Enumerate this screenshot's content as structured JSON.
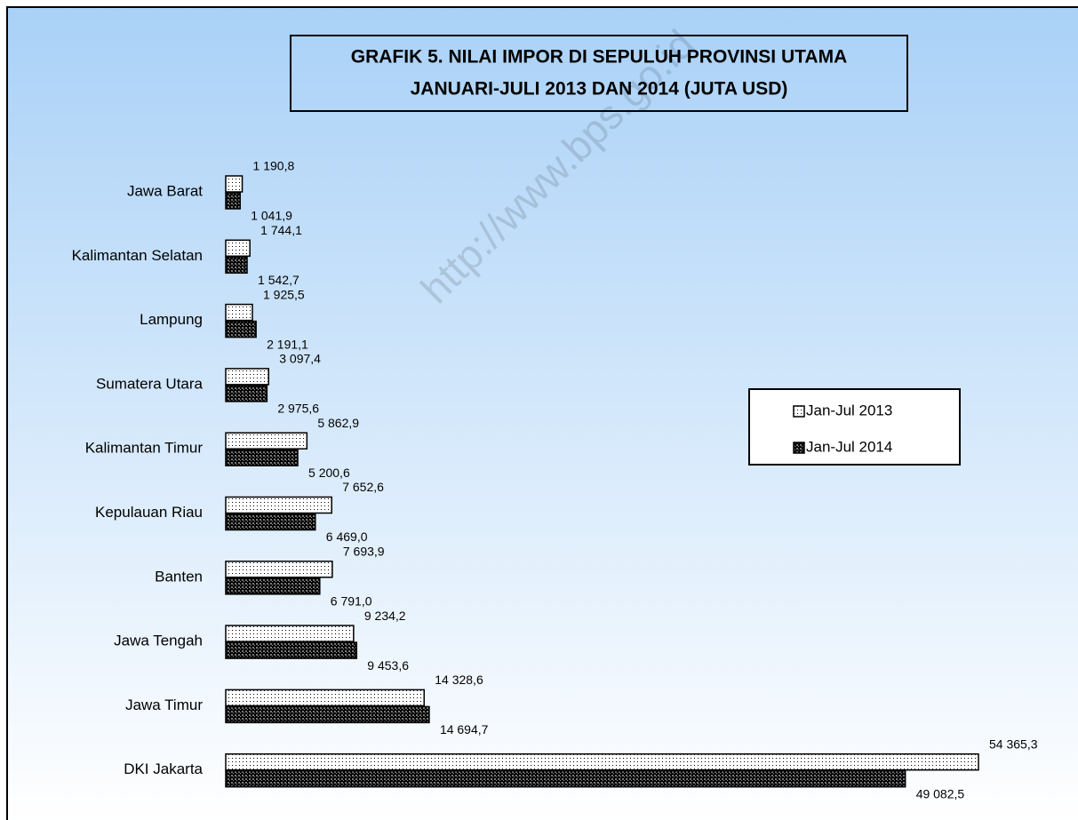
{
  "chart_data": {
    "type": "bar",
    "orientation": "horizontal",
    "title": [
      "GRAFIK 5. NILAI IMPOR DI SEPULUH PROVINSI UTAMA",
      "JANUARI-JULI 2013 DAN 2014 (JUTA USD)"
    ],
    "watermark": "http://www.bps.go.id",
    "categories": [
      "Jawa Barat",
      "Kalimantan Selatan",
      "Lampung",
      "Sumatera Utara",
      "Kalimantan Timur",
      "Kepulauan Riau",
      "Banten",
      "Jawa Tengah",
      "Jawa Timur",
      "DKI Jakarta"
    ],
    "series": [
      {
        "name": "Jan-Jul 2013",
        "color": "#ffffff",
        "values": [
          1190.8,
          1744.1,
          1925.5,
          3097.4,
          5862.9,
          7652.6,
          7693.9,
          9234.2,
          14328.6,
          54365.3
        ],
        "value_labels": [
          "1 190,8",
          "1 744,1",
          "1 925,5",
          "3 097,4",
          "5 862,9",
          "7 652,6",
          "7 693,9",
          "9 234,2",
          "14 328,6",
          "54 365,3"
        ]
      },
      {
        "name": "Jan-Jul 2014",
        "color": "#000000",
        "values": [
          1041.9,
          1542.7,
          2191.1,
          2975.6,
          5200.6,
          6469.0,
          6791.0,
          9453.6,
          14694.7,
          49082.5
        ],
        "value_labels": [
          "1 041,9",
          "1 542,7",
          "2 191,1",
          "2 975,6",
          "5 200,6",
          "6 469,0",
          "6 791,0",
          "9 453,6",
          "14 694,7",
          "49 082,5"
        ]
      }
    ],
    "legend": "right"
  }
}
